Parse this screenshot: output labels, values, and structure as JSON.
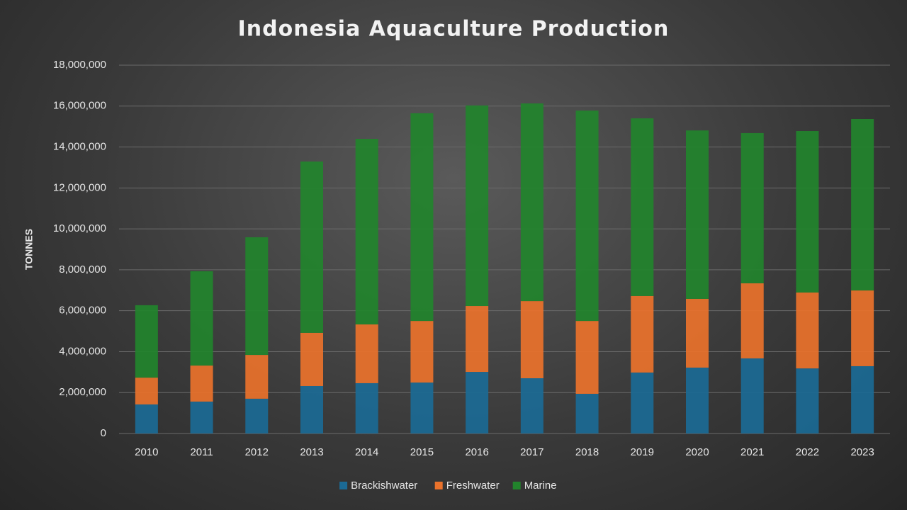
{
  "chart_data": {
    "type": "stacked-bar",
    "title": "Indonesia Aquaculture Production",
    "y_label": "TONNES",
    "categories": [
      "2010",
      "2011",
      "2012",
      "2013",
      "2014",
      "2015",
      "2016",
      "2017",
      "2018",
      "2019",
      "2020",
      "2021",
      "2022",
      "2023"
    ],
    "series": [
      {
        "name": "Brackishwater",
        "color": "#1b6a95",
        "values": [
          1420000,
          1560000,
          1700000,
          2320000,
          2460000,
          2490000,
          3010000,
          2700000,
          1940000,
          2980000,
          3220000,
          3670000,
          3180000,
          3290000
        ]
      },
      {
        "name": "Freshwater",
        "color": "#ea722b",
        "values": [
          1310000,
          1760000,
          2140000,
          2600000,
          2870000,
          3010000,
          3220000,
          3770000,
          3560000,
          3740000,
          3360000,
          3670000,
          3710000,
          3700000
        ]
      },
      {
        "name": "Marine",
        "color": "#22842c",
        "values": [
          3540000,
          4610000,
          5750000,
          8370000,
          9070000,
          10150000,
          9800000,
          9660000,
          10280000,
          8680000,
          8230000,
          7340000,
          7890000,
          8380000
        ]
      }
    ],
    "ylim": [
      0,
      18000000
    ],
    "yticks": [
      0,
      {
        "value": 2000000,
        "label": "2,000,000"
      },
      {
        "value": 4000000,
        "label": "4,000,000"
      },
      {
        "value": 6000000,
        "label": "6,000,000"
      },
      {
        "value": 8000000,
        "label": "8,000,000"
      },
      {
        "value": 10000000,
        "label": "10,000,000"
      },
      {
        "value": 12000000,
        "label": "12,000,000"
      },
      {
        "value": 14000000,
        "label": "14,000,000"
      },
      {
        "value": 16000000,
        "label": "16,000,000"
      },
      {
        "value": 18000000,
        "label": "18,000,000"
      }
    ],
    "grid": true,
    "legend": "bottom"
  }
}
